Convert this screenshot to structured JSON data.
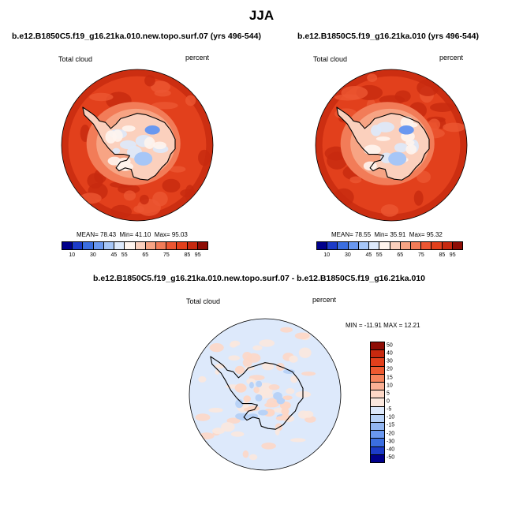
{
  "title": "JJA",
  "chart_data": [
    {
      "type": "heatmap",
      "projection": "south-polar-stereographic",
      "title": "b.e12.B1850C5.f19_g16.21ka.010.new.topo.surf.07 (yrs 496-544)",
      "variable": "Total cloud",
      "units": "percent",
      "mean_label": "MEAN=",
      "mean": "78.43",
      "min_label": "Min=",
      "min": "41.10",
      "max_label": "Max=",
      "max": "95.03",
      "colorbar_ticks": [
        "10",
        "30",
        "45",
        "55",
        "65",
        "75",
        "85",
        "95"
      ]
    },
    {
      "type": "heatmap",
      "projection": "south-polar-stereographic",
      "title": "b.e12.B1850C5.f19_g16.21ka.010 (yrs 496-544)",
      "variable": "Total cloud",
      "units": "percent",
      "mean_label": "MEAN=",
      "mean": "78.55",
      "min_label": "Min=",
      "min": "35.91",
      "max_label": "Max=",
      "max": "95.32",
      "colorbar_ticks": [
        "10",
        "30",
        "45",
        "55",
        "65",
        "75",
        "85",
        "95"
      ]
    },
    {
      "type": "heatmap",
      "projection": "south-polar-stereographic",
      "title": "b.e12.B1850C5.f19_g16.21ka.010.new.topo.surf.07 - b.e12.B1850C5.f19_g16.21ka.010",
      "variable": "Total cloud",
      "units": "percent",
      "minmax_text": "MIN = -11.91 MAX = 12.21",
      "colorbar_ticks": [
        "50",
        "40",
        "30",
        "20",
        "15",
        "10",
        "5",
        "0",
        "-5",
        "-10",
        "-15",
        "-20",
        "-30",
        "-40",
        "-50"
      ]
    }
  ],
  "colors": {
    "abs_scale": [
      "#00008b",
      "#1c3bc8",
      "#3b6ee0",
      "#6a98f0",
      "#a6c6f7",
      "#dde9fb",
      "#fef4ee",
      "#fbd0bd",
      "#f7a484",
      "#f27c58",
      "#ec5632",
      "#e2401c",
      "#c7290f",
      "#8e0d05"
    ],
    "diff_scale": [
      "#8e0d05",
      "#c7290f",
      "#e2401c",
      "#ee5a30",
      "#f6845c",
      "#fab094",
      "#fdd7c6",
      "#fbe8de",
      "#dde9fb",
      "#b8d2f7",
      "#92b6f1",
      "#6a98f0",
      "#3b6ee0",
      "#1c3bc8",
      "#00008b"
    ]
  }
}
